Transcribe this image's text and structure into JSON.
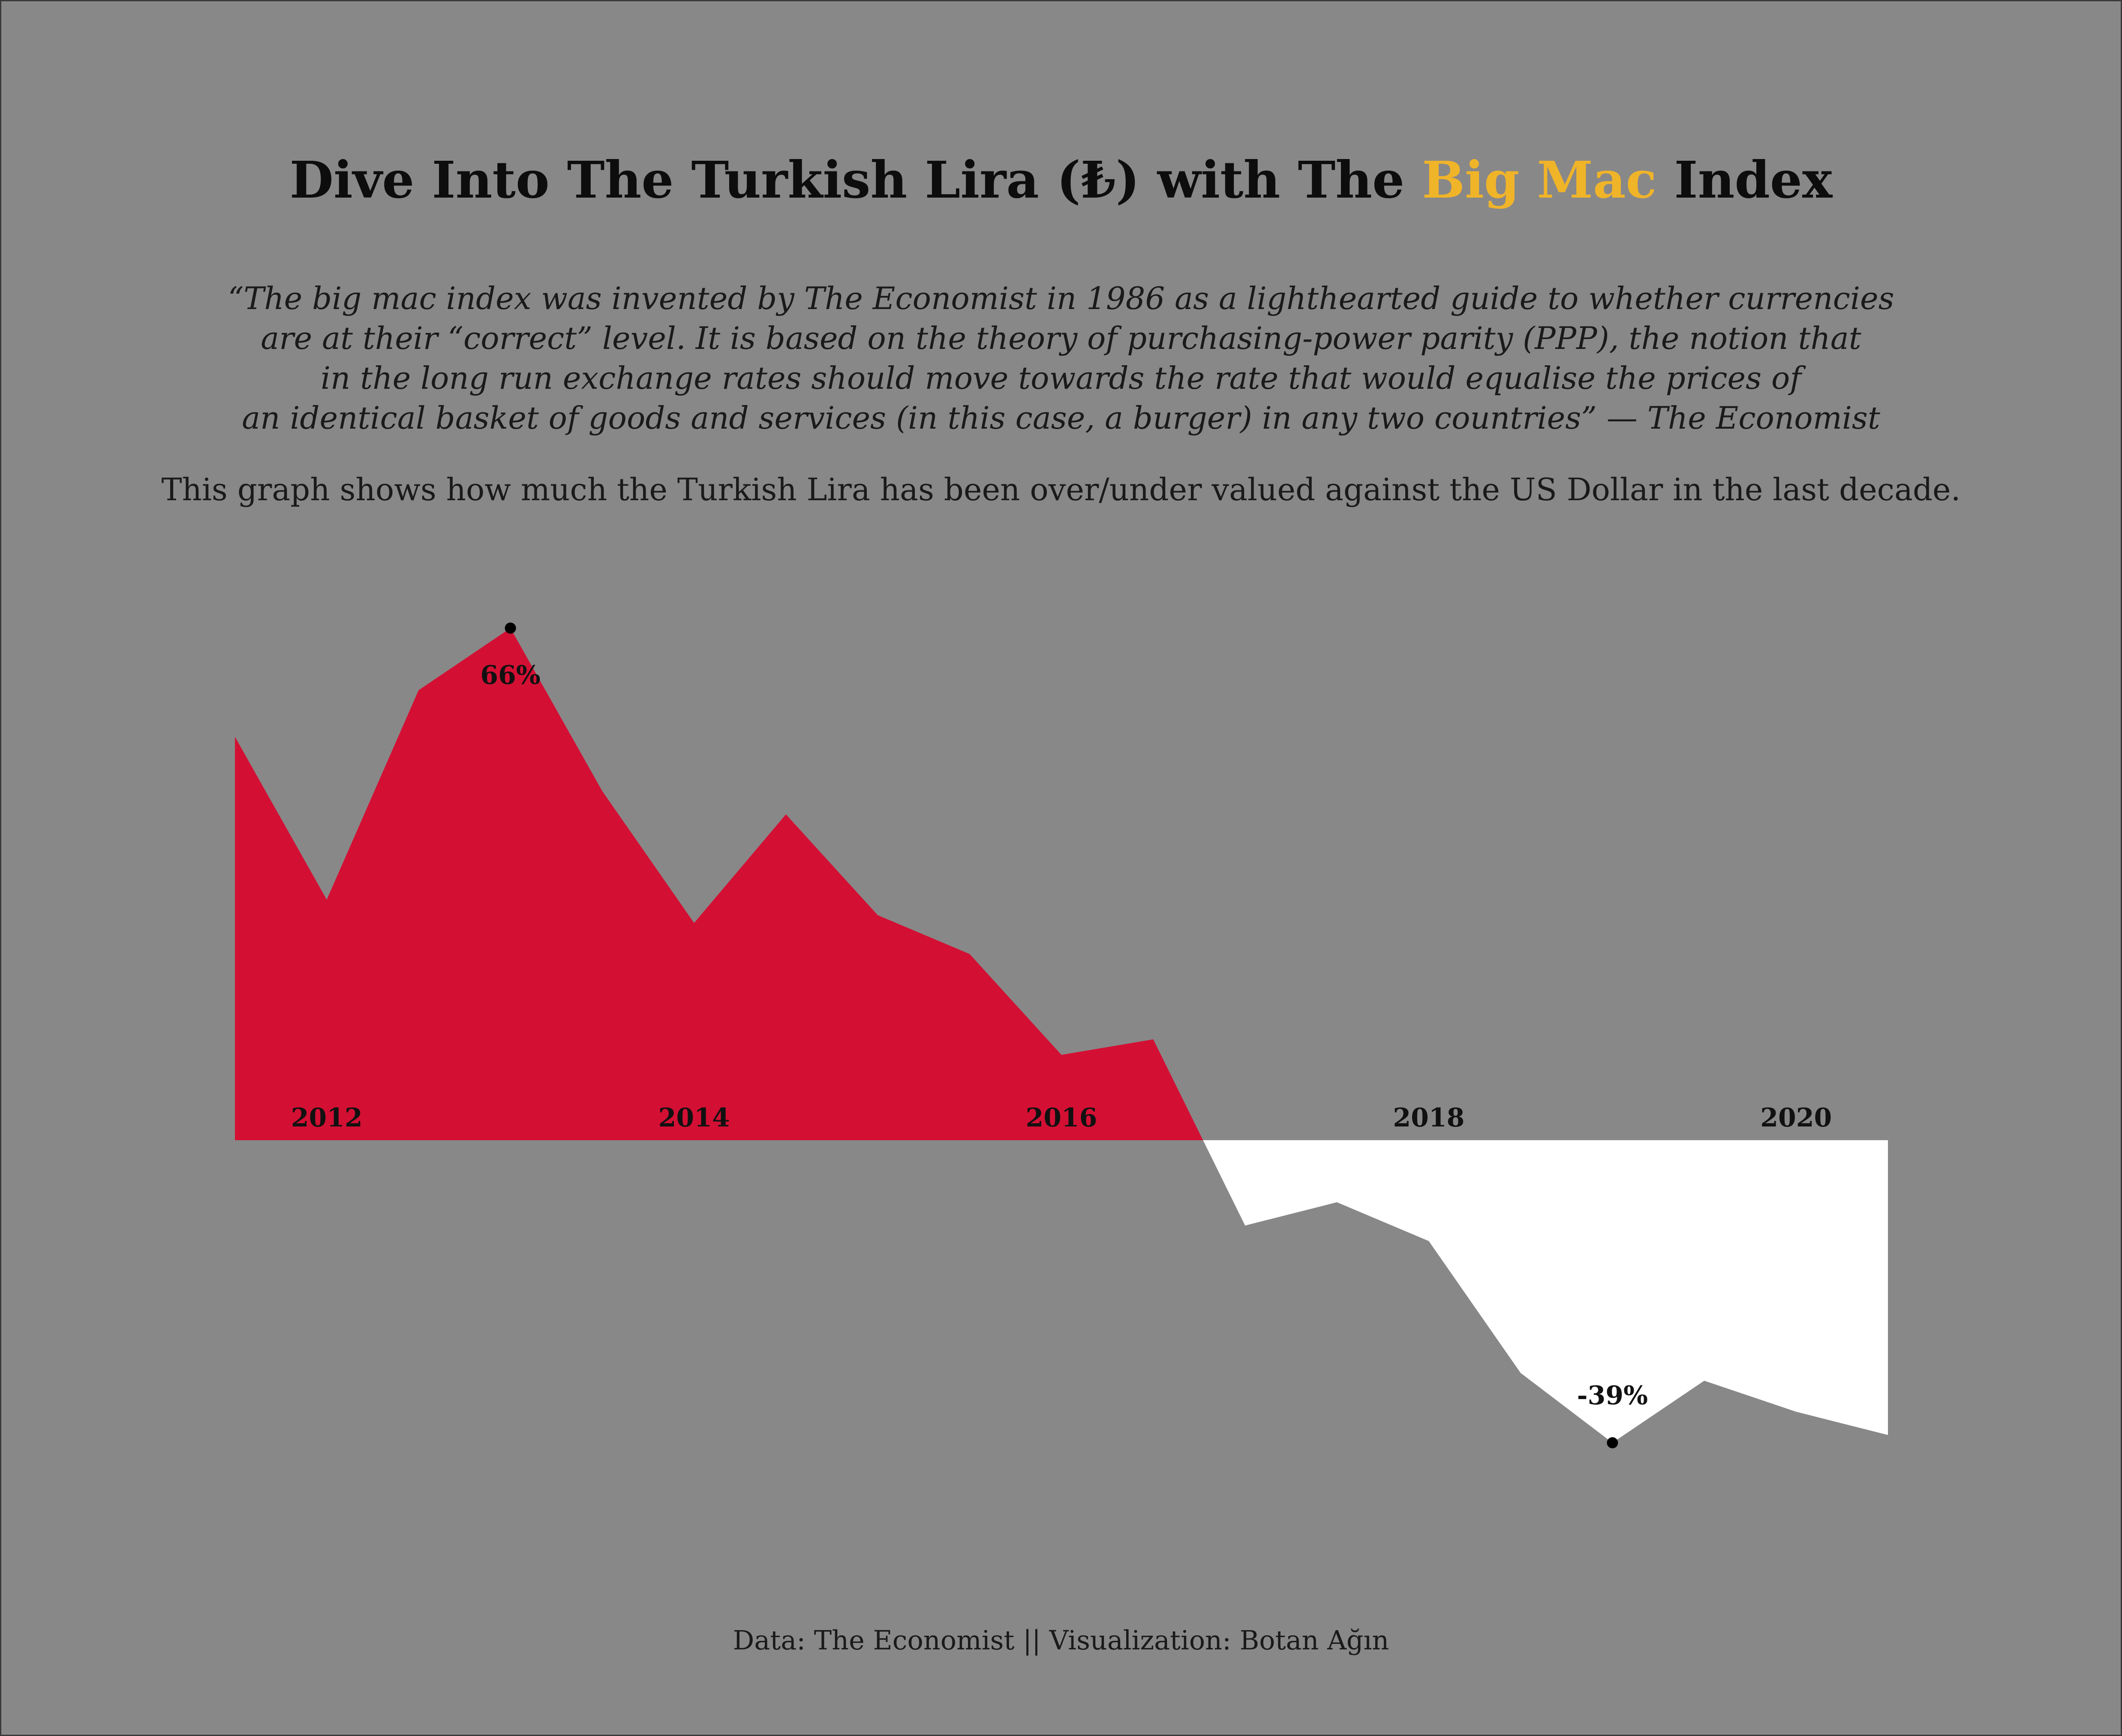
{
  "header": {
    "title_prefix": "Dive Into The Turkish Lira (₺) with The ",
    "title_highlight": "Big Mac",
    "title_suffix": " Index",
    "highlight_color": "#f0b429"
  },
  "quote_lines": [
    "“The big mac index was invented by The Economist in 1986 as a lighthearted guide to whether currencies",
    "are at their “correct” level. It is based on the theory of purchasing-power parity (PPP), the notion that",
    "in the long run exchange rates should move towards the rate that would equalise the prices of",
    "an identical basket of goods and services (in this case, a burger) in any two countries” — The Economist"
  ],
  "subtitle": "This graph shows how much the Turkish Lira has been over/under valued against the US Dollar in the last decade.",
  "caption": "Data: The Economist || Visualization: Botan Ağın",
  "chart_data": {
    "type": "area",
    "x": [
      2011.5,
      2012.0,
      2012.5,
      2013.0,
      2013.5,
      2014.0,
      2014.5,
      2015.0,
      2015.5,
      2016.0,
      2016.5,
      2017.0,
      2017.5,
      2018.0,
      2018.5,
      2019.0,
      2019.5,
      2020.0,
      2020.5
    ],
    "y": [
      52,
      31,
      58,
      66,
      45,
      28,
      42,
      29,
      24,
      11,
      13,
      -11,
      -8,
      -13,
      -30,
      -39,
      -31,
      -35,
      -38
    ],
    "x_ticks": [
      2012,
      2014,
      2016,
      2018,
      2020
    ],
    "x_tick_labels": [
      "2012",
      "2014",
      "2016",
      "2018",
      "2020"
    ],
    "xlim": [
      2011.5,
      2020.5
    ],
    "annotations": [
      {
        "x": 2013.0,
        "y": 66,
        "label": "66%"
      },
      {
        "x": 2019.0,
        "y": -39,
        "label": "-39%"
      }
    ],
    "positive_color": "#d31034",
    "negative_color": "#ffffff",
    "grid": false,
    "legend": "none"
  }
}
